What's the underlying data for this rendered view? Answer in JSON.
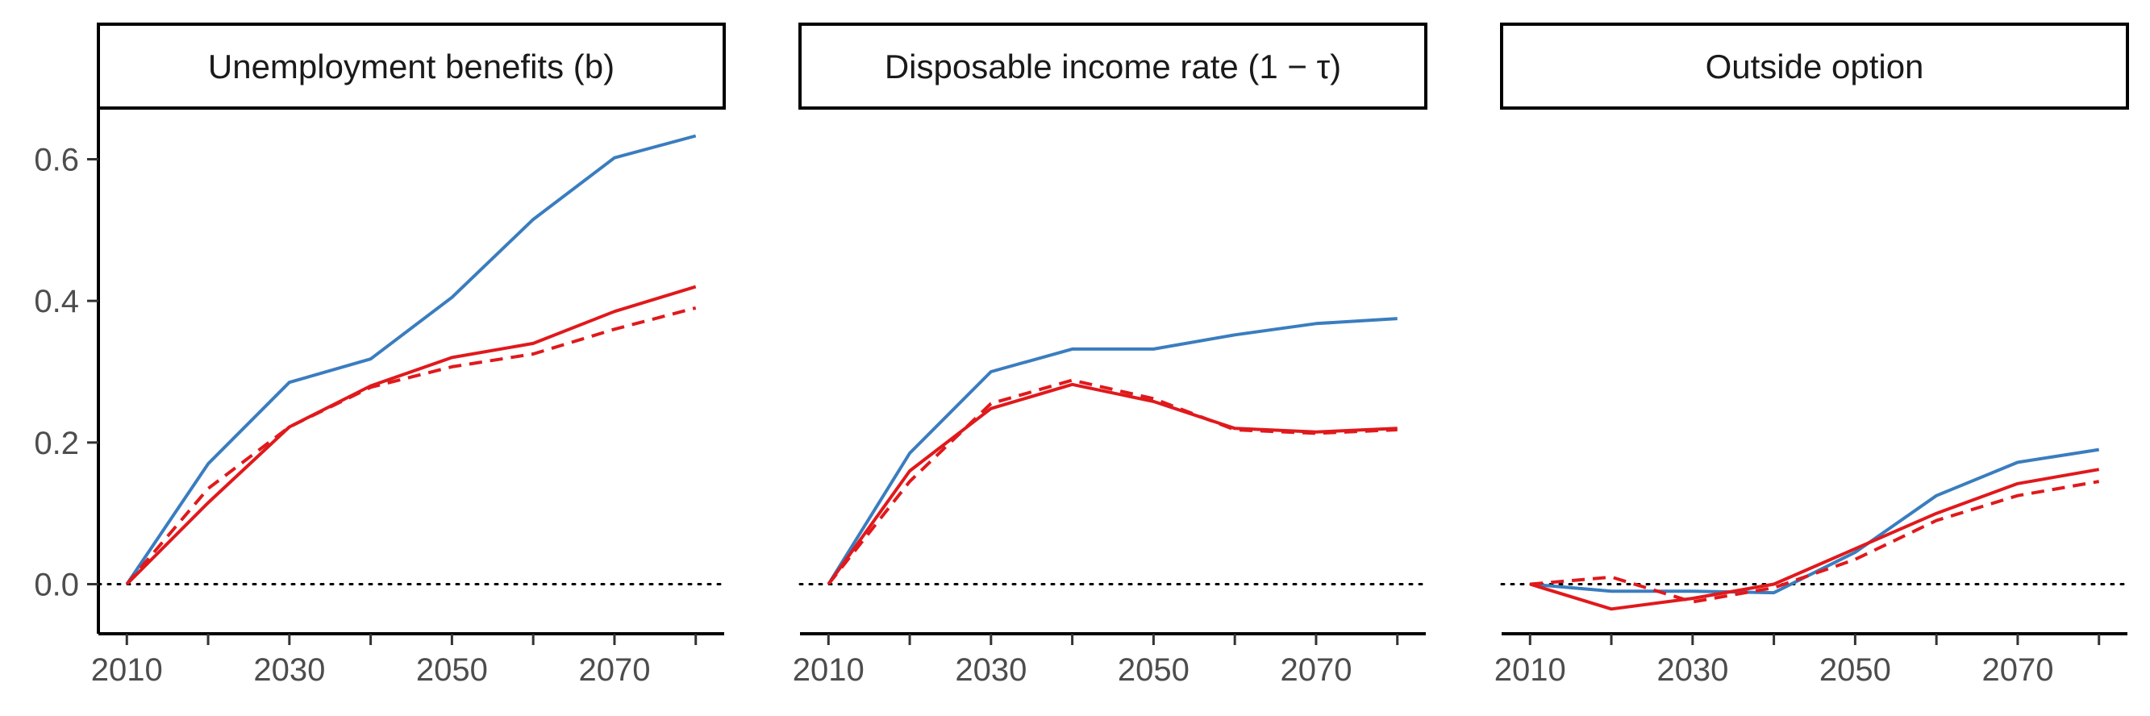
{
  "chart_data": [
    {
      "type": "line",
      "title": "Unemployment benefits (b)",
      "xlabel": "",
      "ylabel": "",
      "x": [
        2010,
        2020,
        2030,
        2040,
        2050,
        2060,
        2070,
        2080
      ],
      "xticks": [
        2010,
        2030,
        2050,
        2070
      ],
      "yticks": [
        0.0,
        0.2,
        0.4,
        0.6
      ],
      "ylim": [
        -0.07,
        0.67
      ],
      "grid": false,
      "reference_line": {
        "y": 0,
        "style": "dotted",
        "color": "#000000"
      },
      "series": [
        {
          "color": "#3a7dbf",
          "dash": "solid",
          "values": [
            0.0,
            0.17,
            0.285,
            0.318,
            0.405,
            0.515,
            0.602,
            0.633
          ]
        },
        {
          "color": "#e0191c",
          "dash": "solid",
          "values": [
            0.0,
            0.115,
            0.222,
            0.28,
            0.32,
            0.34,
            0.385,
            0.42
          ]
        },
        {
          "color": "#e0191c",
          "dash": "dashed",
          "values": [
            0.0,
            0.135,
            0.222,
            0.278,
            0.307,
            0.325,
            0.36,
            0.39
          ]
        }
      ]
    },
    {
      "type": "line",
      "title": "Disposable income rate (1 − τ)",
      "xlabel": "",
      "ylabel": "",
      "x": [
        2010,
        2020,
        2030,
        2040,
        2050,
        2060,
        2070,
        2080
      ],
      "xticks": [
        2010,
        2030,
        2050,
        2070
      ],
      "yticks": [],
      "ylim": [
        -0.07,
        0.67
      ],
      "grid": false,
      "reference_line": {
        "y": 0,
        "style": "dotted",
        "color": "#000000"
      },
      "series": [
        {
          "color": "#3a7dbf",
          "dash": "solid",
          "values": [
            0.0,
            0.185,
            0.3,
            0.332,
            0.332,
            0.352,
            0.368,
            0.375
          ]
        },
        {
          "color": "#e0191c",
          "dash": "solid",
          "values": [
            0.0,
            0.16,
            0.248,
            0.282,
            0.258,
            0.22,
            0.215,
            0.22
          ]
        },
        {
          "color": "#e0191c",
          "dash": "dashed",
          "values": [
            0.0,
            0.145,
            0.255,
            0.288,
            0.262,
            0.218,
            0.213,
            0.218
          ]
        }
      ]
    },
    {
      "type": "line",
      "title": "Outside option",
      "xlabel": "",
      "ylabel": "",
      "x": [
        2010,
        2020,
        2030,
        2040,
        2050,
        2060,
        2070,
        2080
      ],
      "xticks": [
        2010,
        2030,
        2050,
        2070
      ],
      "yticks": [],
      "ylim": [
        -0.07,
        0.67
      ],
      "grid": false,
      "reference_line": {
        "y": 0,
        "style": "dotted",
        "color": "#000000"
      },
      "series": [
        {
          "color": "#3a7dbf",
          "dash": "solid",
          "values": [
            0.0,
            -0.01,
            -0.01,
            -0.012,
            0.045,
            0.125,
            0.172,
            0.19
          ]
        },
        {
          "color": "#e0191c",
          "dash": "solid",
          "values": [
            0.0,
            -0.035,
            -0.02,
            0.0,
            0.05,
            0.1,
            0.142,
            0.162
          ]
        },
        {
          "color": "#e0191c",
          "dash": "dashed",
          "values": [
            0.0,
            0.01,
            -0.025,
            -0.005,
            0.035,
            0.09,
            0.125,
            0.145
          ]
        }
      ]
    }
  ]
}
